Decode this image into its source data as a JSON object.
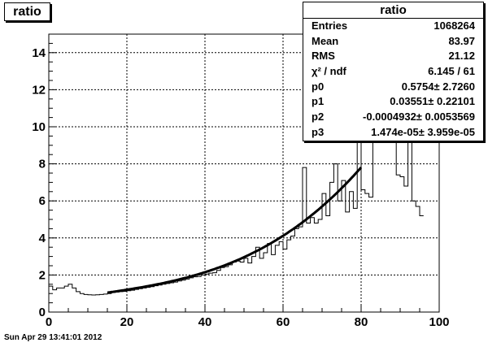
{
  "title": "ratio",
  "datestamp": "Sun Apr 29 13:41:01 2012",
  "stats": {
    "title": "ratio",
    "rows": [
      {
        "label": "Entries",
        "value": "1068264"
      },
      {
        "label": "Mean",
        "value": "83.97"
      },
      {
        "label": "RMS",
        "value": "21.12"
      },
      {
        "label": "χ² / ndf",
        "value": "6.145 / 61"
      },
      {
        "label": "p0",
        "value": "0.5754± 2.7260"
      },
      {
        "label": "p1",
        "value": "0.03551± 0.22101"
      },
      {
        "label": "p2",
        "value": "-0.0004932± 0.0053569"
      },
      {
        "label": "p3",
        "value": "1.474e-05± 3.959e-05"
      }
    ]
  },
  "chart_data": {
    "type": "histogram",
    "xlim": [
      0,
      100
    ],
    "ylim": [
      0,
      15
    ],
    "xticks": [
      0,
      20,
      40,
      60,
      80,
      100
    ],
    "yticks": [
      0,
      2,
      4,
      6,
      8,
      10,
      12,
      14
    ],
    "grid": true,
    "bin_width": 1,
    "histogram": [
      1.4,
      1.2,
      1.3,
      1.3,
      1.4,
      1.5,
      1.3,
      1.1,
      1.0,
      0.95,
      0.93,
      0.92,
      0.93,
      0.95,
      0.97,
      1.0,
      1.05,
      1.08,
      1.1,
      1.12,
      1.15,
      1.18,
      1.22,
      1.26,
      1.3,
      1.33,
      1.37,
      1.42,
      1.46,
      1.5,
      1.54,
      1.58,
      1.62,
      1.68,
      1.72,
      1.78,
      1.85,
      1.9,
      1.92,
      2.0,
      2.05,
      2.1,
      2.12,
      2.25,
      2.4,
      2.45,
      2.55,
      2.7,
      2.75,
      2.7,
      2.9,
      2.65,
      3.0,
      3.5,
      2.9,
      3.2,
      3.7,
      3.1,
      3.6,
      3.8,
      3.4,
      3.9,
      4.1,
      4.5,
      4.6,
      7.8,
      4.8,
      5.1,
      4.8,
      5.0,
      6.4,
      5.2,
      7.0,
      8.0,
      6.0,
      7.1,
      5.4,
      6.5,
      5.6,
      16,
      6.6,
      6.4,
      6.2,
      16,
      16,
      16,
      16,
      16,
      16,
      7.4,
      7.3,
      6.8,
      9.2,
      6.0,
      5.7,
      5.2
    ],
    "fit": {
      "function": "pol3",
      "x_range": [
        15,
        80
      ],
      "params": [
        0.5754,
        0.03551,
        -0.0004932,
        1.474e-05
      ]
    }
  }
}
